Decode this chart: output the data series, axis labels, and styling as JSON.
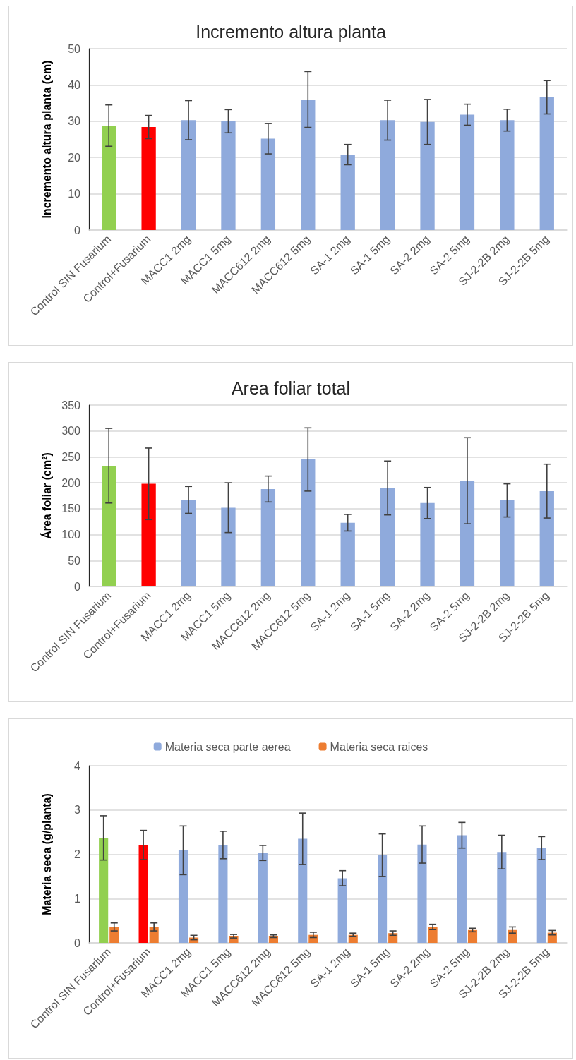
{
  "chart_data": [
    {
      "type": "bar",
      "title": "Incremento altura planta",
      "ylabel": "Incremento altura planta (cm)",
      "categories": [
        "Control SIN Fusarium",
        "Control+Fusarium",
        "MACC1 2mg",
        "MACC1 5mg",
        "MACC612 2mg",
        "MACC612 5mg",
        "SA-1 2mg",
        "SA-1 5mg",
        "SA-2 2mg",
        "SA-2 5mg",
        "SJ-2-2B 2mg",
        "SJ-2-2B 5mg"
      ],
      "values": [
        28.8,
        28.4,
        30.3,
        30.0,
        25.2,
        36.0,
        20.8,
        30.3,
        29.8,
        31.8,
        30.3,
        36.6
      ],
      "errors": [
        5.7,
        3.2,
        5.4,
        3.2,
        4.2,
        7.7,
        2.8,
        5.5,
        6.2,
        2.9,
        3.0,
        4.6
      ],
      "colors": [
        "#92d050",
        "#ff0000",
        "#8faadc",
        "#8faadc",
        "#8faadc",
        "#8faadc",
        "#8faadc",
        "#8faadc",
        "#8faadc",
        "#8faadc",
        "#8faadc",
        "#8faadc"
      ],
      "ylim": [
        0,
        50
      ],
      "yticks": [
        0,
        10,
        20,
        30,
        40,
        50
      ],
      "grid": "y"
    },
    {
      "type": "bar",
      "title": "Area foliar total",
      "ylabel": "Área foliar (cm²)",
      "categories": [
        "Control SIN Fusarium",
        "Control+Fusarium",
        "MACC1 2mg",
        "MACC1 5mg",
        "MACC612 2mg",
        "MACC612 5mg",
        "SA-1 2mg",
        "SA-1 5mg",
        "SA-2 2mg",
        "SA-2 5mg",
        "SJ-2-2B 2mg",
        "SJ-2-2B 5mg"
      ],
      "values": [
        233,
        198,
        167,
        152,
        188,
        245,
        123,
        190,
        161,
        204,
        166,
        184
      ],
      "errors": [
        72,
        69,
        26,
        48,
        25,
        61,
        16,
        52,
        30,
        83,
        32,
        52
      ],
      "colors": [
        "#92d050",
        "#ff0000",
        "#8faadc",
        "#8faadc",
        "#8faadc",
        "#8faadc",
        "#8faadc",
        "#8faadc",
        "#8faadc",
        "#8faadc",
        "#8faadc",
        "#8faadc"
      ],
      "ylim": [
        0,
        350
      ],
      "yticks": [
        0,
        50,
        100,
        150,
        200,
        250,
        300,
        350
      ],
      "grid": "y"
    },
    {
      "type": "bar",
      "ylabel": "Materia seca (g/planta)",
      "categories": [
        "Control SIN Fusarium",
        "Control+Fusarium",
        "MACC1 2mg",
        "MACC1 5mg",
        "MACC612 2mg",
        "MACC612 5mg",
        "SA-1 2mg",
        "SA-1 5mg",
        "SA-2 2mg",
        "SA-2 5mg",
        "SJ-2-2B 2mg",
        "SJ-2-2B 5mg"
      ],
      "series": [
        {
          "name": "Materia seca parte aerea",
          "color": "#8faadc",
          "colors": [
            "#92d050",
            "#ff0000",
            "#8faadc",
            "#8faadc",
            "#8faadc",
            "#8faadc",
            "#8faadc",
            "#8faadc",
            "#8faadc",
            "#8faadc",
            "#8faadc",
            "#8faadc"
          ],
          "values": [
            2.37,
            2.21,
            2.09,
            2.21,
            2.03,
            2.35,
            1.46,
            1.98,
            2.22,
            2.43,
            2.05,
            2.14
          ],
          "errors": [
            0.5,
            0.33,
            0.55,
            0.31,
            0.17,
            0.58,
            0.17,
            0.48,
            0.42,
            0.29,
            0.38,
            0.26
          ]
        },
        {
          "name": "Materia seca raices",
          "color": "#ed7d31",
          "values": [
            0.36,
            0.36,
            0.12,
            0.15,
            0.15,
            0.18,
            0.18,
            0.22,
            0.36,
            0.29,
            0.29,
            0.23
          ],
          "errors": [
            0.09,
            0.09,
            0.05,
            0.04,
            0.03,
            0.06,
            0.04,
            0.05,
            0.06,
            0.04,
            0.07,
            0.05
          ]
        }
      ],
      "ylim": [
        0,
        4
      ],
      "yticks": [
        0,
        1,
        2,
        3,
        4
      ],
      "grid": "y",
      "legend": "top"
    }
  ]
}
